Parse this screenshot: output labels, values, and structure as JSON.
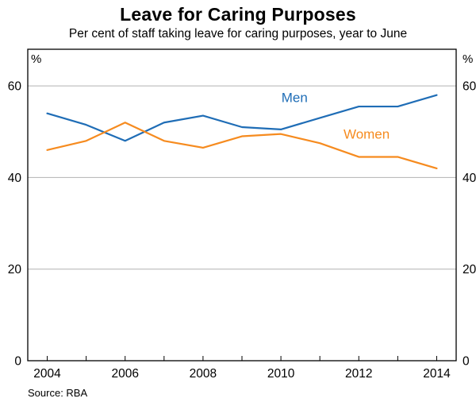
{
  "chart_data": {
    "type": "line",
    "title": "Leave for Caring Purposes",
    "subtitle": "Per cent of staff taking leave for caring purposes, year to June",
    "unit_left": "%",
    "unit_right": "%",
    "x": [
      2004,
      2005,
      2006,
      2007,
      2008,
      2009,
      2010,
      2011,
      2012,
      2013,
      2014
    ],
    "series": [
      {
        "name": "Men",
        "color": "#1f6db6",
        "values": [
          54,
          51.5,
          48,
          52,
          53.5,
          51,
          50.5,
          53,
          55.5,
          55.5,
          58
        ],
        "label_at": {
          "x": 2010.35,
          "y": 56.5
        }
      },
      {
        "name": "Women",
        "color": "#f68b1f",
        "values": [
          46,
          48,
          52,
          48,
          46.5,
          49,
          49.5,
          47.5,
          44.5,
          44.5,
          42
        ],
        "label_at": {
          "x": 2012.2,
          "y": 48.5
        }
      }
    ],
    "xlim": [
      2003.5,
      2014.5
    ],
    "ylim": [
      0,
      68
    ],
    "yticks": [
      0,
      20,
      40,
      60
    ],
    "xtick_labels": [
      2004,
      2006,
      2008,
      2010,
      2012,
      2014
    ],
    "grid": "horizontal",
    "legend_position": "inline-labels",
    "axis_color": "#000000",
    "grid_color": "#b2b2b2"
  },
  "footer": {
    "source": "Source: RBA"
  }
}
